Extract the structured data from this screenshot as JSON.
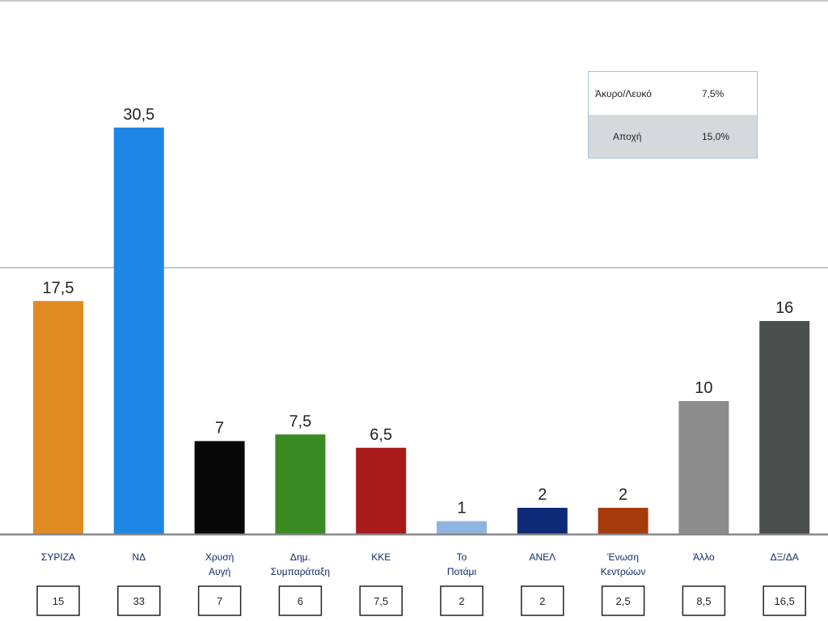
{
  "chart_data": {
    "type": "bar",
    "categories": [
      "ΣΥΡΙΖΑ",
      "ΝΔ",
      "Χρυσή Αυγή",
      "Δημ. Συμπαράταξη",
      "ΚΚΕ",
      "Το Ποτάμι",
      "ΑΝΕΛ",
      "Ένωση Κεντρώων",
      "Άλλο",
      "ΔΞ/ΔΑ"
    ],
    "category_lines": [
      [
        "ΣΥΡΙΖΑ"
      ],
      [
        "ΝΔ"
      ],
      [
        "Χρυσή",
        "Αυγή"
      ],
      [
        "Δημ.",
        "Συμπαράταξη"
      ],
      [
        "ΚΚΕ"
      ],
      [
        "Το",
        "Ποτάμι"
      ],
      [
        "ΑΝΕΛ"
      ],
      [
        "Ένωση",
        "Κεντρώων"
      ],
      [
        "Άλλο"
      ],
      [
        "ΔΞ/ΔΑ"
      ]
    ],
    "values": [
      17.5,
      30.5,
      7,
      7.5,
      6.5,
      1,
      2,
      2,
      10,
      16
    ],
    "value_labels": [
      "17,5",
      "30,5",
      "7",
      "7,5",
      "6,5",
      "1",
      "2",
      "2",
      "10",
      "16"
    ],
    "previous_values": [
      15,
      33,
      7,
      6,
      7.5,
      2,
      2,
      2.5,
      8.5,
      16.5
    ],
    "previous_labels": [
      "15",
      "33",
      "7",
      "6",
      "7,5",
      "2",
      "2",
      "2,5",
      "8,5",
      "16,5"
    ],
    "colors": [
      "#e08a22",
      "#1e86e5",
      "#080808",
      "#3a8a23",
      "#a91b1b",
      "#8fb4df",
      "#102a7a",
      "#a63b0b",
      "#8c8c8c",
      "#4b4f4e"
    ],
    "ylim": [
      0,
      40
    ],
    "gridlines": [
      20,
      40
    ],
    "grid": true,
    "axis_color": "#888888",
    "title": "",
    "xlabel": "",
    "ylabel": ""
  },
  "legend_box": {
    "rows": [
      {
        "label": "Άκυρο/Λευκό",
        "value": "7,5%"
      },
      {
        "label": "Αποχή",
        "value": "15,0%"
      }
    ]
  }
}
